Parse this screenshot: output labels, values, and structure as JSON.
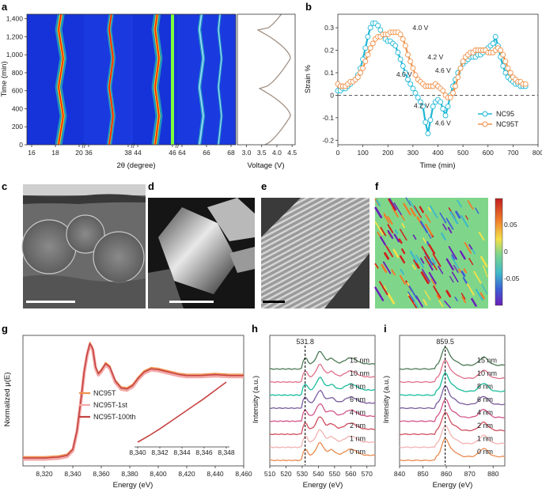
{
  "panels": {
    "a": {
      "label": "a",
      "ylabel": "Time (min)",
      "xlabel": "2θ (degree)",
      "xlabel2": "Voltage (V)",
      "yticks": [
        0,
        200,
        400,
        600,
        800,
        1000,
        1200,
        1400
      ],
      "ytick_labels": [
        "0",
        "200",
        "400",
        "600",
        "800",
        "1,000",
        "1,200",
        "1,400"
      ],
      "seg_ticks": [
        [
          "16",
          "18",
          "20"
        ],
        [
          "36",
          "38"
        ],
        [
          "44",
          "46"
        ],
        [
          "64",
          "66",
          "68"
        ]
      ],
      "voltage_ticks": [
        "3.0",
        "3.5",
        "4.0",
        "4.5"
      ],
      "colors": {
        "bg": "#1633d9",
        "peak": "#ff1a00",
        "halo": "#2ee6a0"
      }
    },
    "b": {
      "label": "b",
      "chart_data": {
        "type": "line",
        "xlabel": "Time (min)",
        "ylabel": "Strain %",
        "xlim": [
          0,
          800
        ],
        "ylim": [
          -0.22,
          0.36
        ],
        "xticks": [
          "0",
          "100",
          "200",
          "300",
          "400",
          "500",
          "600",
          "700",
          "800"
        ],
        "yticks": [
          "-0.2",
          "-0.1",
          "0",
          "0.1",
          "0.2",
          "0.3"
        ],
        "legend_position": "bottom-right",
        "series": [
          {
            "name": "NC95",
            "color": "#1fb7d6",
            "x": [
              0,
              10,
              20,
              30,
              40,
              50,
              60,
              70,
              80,
              90,
              100,
              110,
              120,
              130,
              140,
              150,
              160,
              170,
              180,
              190,
              200,
              210,
              220,
              230,
              240,
              250,
              260,
              270,
              280,
              290,
              300,
              310,
              320,
              330,
              340,
              350,
              360,
              370,
              380,
              390,
              400,
              410,
              420,
              430,
              440,
              450,
              460,
              470,
              480,
              490,
              500,
              510,
              520,
              530,
              540,
              550,
              560,
              570,
              580,
              590,
              600,
              610,
              620,
              630,
              640,
              650,
              660,
              670,
              680,
              690,
              700,
              710,
              720,
              730,
              740,
              750
            ],
            "y": [
              0.02,
              0.02,
              0.03,
              0.03,
              0.04,
              0.05,
              0.06,
              0.07,
              0.09,
              0.12,
              0.16,
              0.21,
              0.26,
              0.3,
              0.32,
              0.32,
              0.31,
              0.29,
              0.27,
              0.25,
              0.24,
              0.24,
              0.23,
              0.22,
              0.19,
              0.16,
              0.13,
              0.1,
              0.07,
              0.05,
              0.03,
              0.01,
              -0.01,
              -0.03,
              -0.05,
              -0.12,
              -0.17,
              -0.11,
              -0.05,
              -0.03,
              -0.02,
              -0.03,
              -0.06,
              -0.09,
              -0.05,
              0.0,
              0.04,
              0.07,
              0.1,
              0.12,
              0.14,
              0.15,
              0.16,
              0.17,
              0.17,
              0.17,
              0.18,
              0.18,
              0.19,
              0.2,
              0.21,
              0.22,
              0.23,
              0.26,
              0.22,
              0.17,
              0.13,
              0.1,
              0.08,
              0.07,
              0.06,
              0.05,
              0.05,
              0.04,
              0.04,
              0.04
            ]
          },
          {
            "name": "NC95T",
            "color": "#f0924a",
            "x": [
              0,
              10,
              20,
              30,
              40,
              50,
              60,
              70,
              80,
              90,
              100,
              110,
              120,
              130,
              140,
              150,
              160,
              170,
              180,
              190,
              200,
              210,
              220,
              230,
              240,
              250,
              260,
              270,
              280,
              290,
              300,
              310,
              320,
              330,
              340,
              350,
              360,
              370,
              380,
              390,
              400,
              410,
              420,
              430,
              440,
              450,
              460,
              470,
              480,
              490,
              500,
              510,
              520,
              530,
              540,
              550,
              560,
              570,
              580,
              590,
              600,
              610,
              620,
              630,
              640,
              650,
              660,
              670,
              680,
              690,
              700,
              710,
              720,
              730,
              740,
              750
            ],
            "y": [
              0.05,
              0.04,
              0.04,
              0.04,
              0.05,
              0.06,
              0.06,
              0.07,
              0.08,
              0.1,
              0.12,
              0.15,
              0.18,
              0.21,
              0.23,
              0.25,
              0.26,
              0.26,
              0.27,
              0.27,
              0.27,
              0.28,
              0.28,
              0.28,
              0.28,
              0.27,
              0.25,
              0.22,
              0.18,
              0.15,
              0.12,
              0.09,
              0.07,
              0.06,
              0.05,
              0.04,
              0.04,
              0.04,
              0.04,
              0.05,
              0.04,
              0.03,
              0.02,
              0.0,
              -0.01,
              -0.01,
              0.01,
              0.04,
              0.08,
              0.12,
              0.15,
              0.17,
              0.18,
              0.19,
              0.19,
              0.2,
              0.2,
              0.2,
              0.2,
              0.2,
              0.19,
              0.19,
              0.19,
              0.2,
              0.21,
              0.2,
              0.18,
              0.15,
              0.12,
              0.1,
              0.08,
              0.07,
              0.06,
              0.06,
              0.05,
              0.05
            ]
          }
        ],
        "annotations": [
          {
            "text": "4.0 V",
            "x": 330,
            "y": 0.29,
            "color": "#f0924a"
          },
          {
            "text": "4.2 V",
            "x": 390,
            "y": 0.16,
            "color": "#f0924a"
          },
          {
            "text": "4.6 V",
            "x": 420,
            "y": 0.1,
            "color": "#f0924a"
          },
          {
            "text": "4.0 V",
            "x": 265,
            "y": 0.082,
            "color": "#1fb7d6"
          },
          {
            "text": "4.2 V",
            "x": 335,
            "y": -0.057,
            "color": "#1fb7d6"
          },
          {
            "text": "4.6 V",
            "x": 420,
            "y": -0.133,
            "color": "#1fb7d6"
          }
        ]
      }
    },
    "c": {
      "label": "c"
    },
    "d": {
      "label": "d"
    },
    "e": {
      "label": "e"
    },
    "f": {
      "label": "f",
      "colorbar_ticks": [
        "0.05",
        "0",
        "-0.05"
      ],
      "colors": {
        "base": "#7fd68a"
      }
    },
    "g": {
      "label": "g",
      "chart_data": {
        "type": "line",
        "xlabel": "Energy (eV)",
        "ylabel": "Normalized μ(E)",
        "xlim": [
          8305,
          8460
        ],
        "ylim": [
          0,
          1.42
        ],
        "xticks": [
          "8,320",
          "8,340",
          "8,360",
          "8,380",
          "8,400",
          "8,420",
          "8,440",
          "8,460"
        ],
        "legend_position": "middle-left",
        "series": [
          {
            "name": "NC95T",
            "color": "#f0924a"
          },
          {
            "name": "NC95T-1st",
            "color": "#f2aaa8"
          },
          {
            "name": "NC95T-100th",
            "color": "#c6423f"
          }
        ],
        "x": [
          8305,
          8320,
          8330,
          8336,
          8340,
          8343,
          8346,
          8348,
          8350,
          8352,
          8354,
          8356,
          8358,
          8360,
          8363,
          8366,
          8370,
          8374,
          8378,
          8382,
          8386,
          8390,
          8395,
          8400,
          8405,
          8410,
          8415,
          8420,
          8425,
          8430,
          8440,
          8450,
          8460
        ],
        "y": [
          0.02,
          0.02,
          0.03,
          0.05,
          0.12,
          0.35,
          0.75,
          1.05,
          1.25,
          1.38,
          1.32,
          1.1,
          1.02,
          1.06,
          1.14,
          1.1,
          0.93,
          0.85,
          0.84,
          0.88,
          0.97,
          1.04,
          1.08,
          1.07,
          1.05,
          1.03,
          1.01,
          1.0,
          1.0,
          1.0,
          1.01,
          1.0,
          1.0
        ],
        "inset": {
          "xticks": [
            "8,340",
            "8,342",
            "8,344",
            "8,346",
            "8,348"
          ],
          "x": [
            8340,
            8341,
            8342,
            8343,
            8344,
            8345,
            8346,
            8347,
            8348
          ],
          "y": [
            0.0,
            0.1,
            0.21,
            0.33,
            0.45,
            0.57,
            0.69,
            0.82,
            0.95
          ]
        }
      }
    },
    "h": {
      "label": "h",
      "chart_data": {
        "type": "line",
        "xlabel": "Energy (eV)",
        "ylabel": "Intensity (a.u.)",
        "xlim": [
          510,
          575
        ],
        "xticks": [
          "510",
          "520",
          "530",
          "540",
          "550",
          "560",
          "570"
        ],
        "marker_value": "531.8",
        "marker_x": 531.8,
        "series_labels": [
          "0 nm",
          "1 nm",
          "2 nm",
          "4 nm",
          "6 nm",
          "8 nm",
          "10 nm",
          "15 nm"
        ]
      }
    },
    "i": {
      "label": "i",
      "chart_data": {
        "type": "line",
        "xlabel": "Energy (eV)",
        "ylabel": "Intensity (a.u.)",
        "xlim": [
          840,
          885
        ],
        "xticks": [
          "840",
          "850",
          "860",
          "870",
          "880"
        ],
        "marker_value": "859.5",
        "marker_x": 859.5,
        "series_labels": [
          "0 nm",
          "1 nm",
          "2 nm",
          "4 nm",
          "6 nm",
          "8 nm",
          "10 nm",
          "15 nm"
        ]
      }
    },
    "depth_colors": [
      "#e98b50",
      "#f2b3b1",
      "#cf4f5f",
      "#d2578b",
      "#7b5c9e",
      "#1abc9c",
      "#e0728a",
      "#4d7a55"
    ]
  }
}
